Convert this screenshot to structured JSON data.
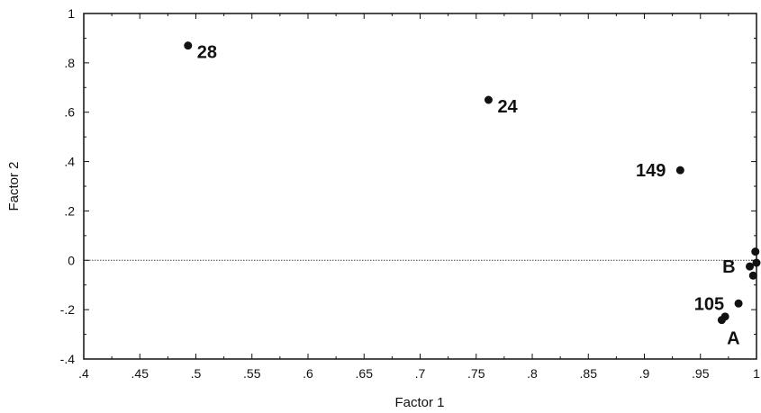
{
  "chart_data": {
    "type": "scatter",
    "xlabel": "Factor 1",
    "ylabel": "Factor 2",
    "xlim": [
      0.4,
      1.0
    ],
    "ylim": [
      -0.4,
      1.0
    ],
    "grid": false,
    "reference_line_y": 0,
    "x_ticks": [
      0.4,
      0.45,
      0.5,
      0.55,
      0.6,
      0.65,
      0.7,
      0.75,
      0.8,
      0.85,
      0.9,
      0.95,
      1.0
    ],
    "x_tick_labels": [
      ".4",
      ".45",
      ".5",
      ".55",
      ".6",
      ".65",
      ".7",
      ".75",
      ".8",
      ".85",
      ".9",
      ".95",
      "1"
    ],
    "y_ticks": [
      -0.4,
      -0.2,
      0,
      0.2,
      0.4,
      0.6,
      0.8,
      1.0
    ],
    "y_tick_labels": [
      "-.4",
      "-.2",
      "0",
      ".2",
      ".4",
      ".6",
      ".8",
      "1"
    ],
    "points": [
      {
        "x": 0.493,
        "y": 0.87
      },
      {
        "x": 0.761,
        "y": 0.65
      },
      {
        "x": 0.932,
        "y": 0.365
      },
      {
        "x": 0.984,
        "y": -0.175
      },
      {
        "x": 0.972,
        "y": -0.228
      },
      {
        "x": 0.969,
        "y": -0.242
      },
      {
        "x": 0.994,
        "y": -0.025
      },
      {
        "x": 0.997,
        "y": -0.062
      },
      {
        "x": 0.999,
        "y": 0.035
      },
      {
        "x": 1.0,
        "y": -0.01
      }
    ],
    "labels": [
      {
        "text": "28",
        "x": 0.493,
        "y": 0.87,
        "anchor": "right"
      },
      {
        "text": "24",
        "x": 0.761,
        "y": 0.65,
        "anchor": "right"
      },
      {
        "text": "149",
        "x": 0.932,
        "y": 0.365,
        "anchor": "left"
      },
      {
        "text": "105",
        "x": 0.984,
        "y": -0.175,
        "anchor": "left"
      },
      {
        "text": "A",
        "x": 0.969,
        "y": -0.242,
        "anchor": "below"
      },
      {
        "text": "B",
        "x": 0.994,
        "y": -0.025,
        "anchor": "left"
      }
    ]
  }
}
